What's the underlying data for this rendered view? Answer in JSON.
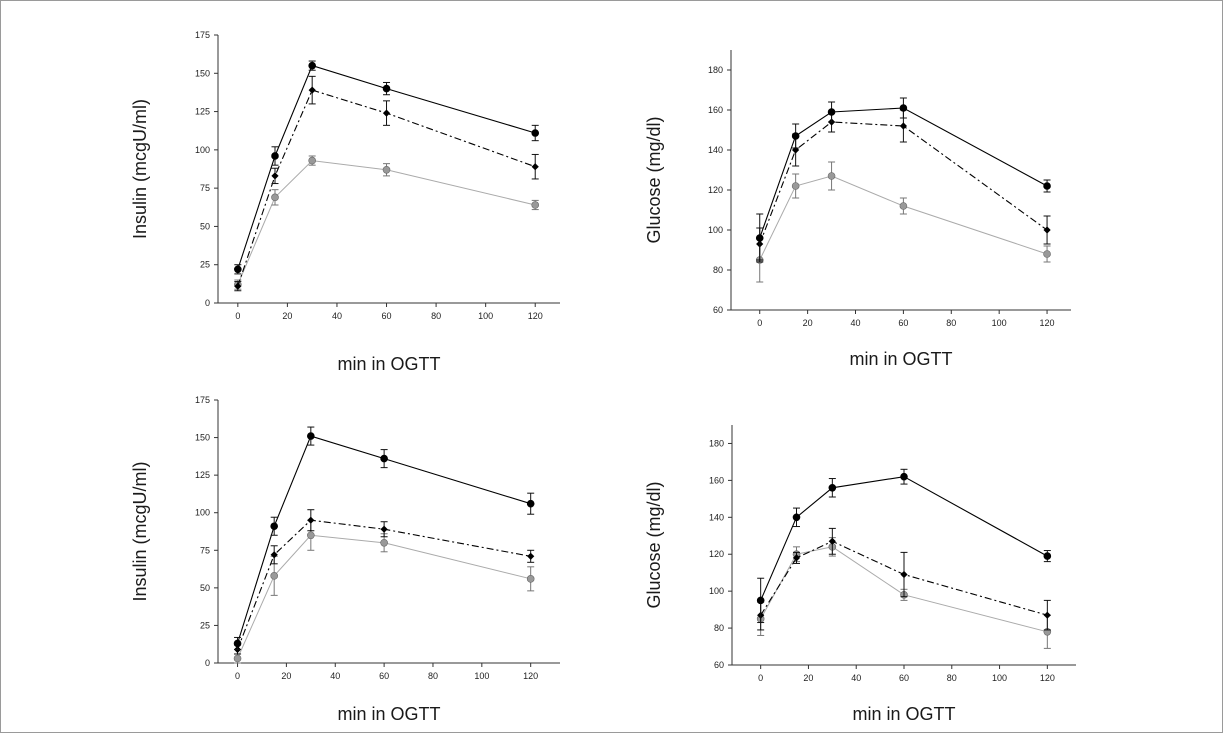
{
  "chart_data": [
    {
      "type": "line",
      "xlabel": "min in OGTT",
      "ylabel": "Insulin (mcgU/ml)",
      "ylim": [
        0,
        175
      ],
      "xlim": [
        -8,
        130
      ],
      "yticks": [
        0,
        25,
        50,
        75,
        100,
        125,
        150,
        175
      ],
      "xticks": [
        0,
        20,
        40,
        60,
        80,
        100,
        120
      ],
      "x": [
        0,
        15,
        30,
        60,
        120
      ],
      "grid": false,
      "series": [
        {
          "style": "solid",
          "color": "#000000",
          "marker_color": "#000000",
          "values": [
            22,
            96,
            155,
            140,
            111
          ],
          "errors": [
            3,
            6,
            3,
            4,
            5
          ]
        },
        {
          "style": "dashed",
          "color": "#000000",
          "marker_color": "#000000",
          "values": [
            11,
            83,
            139,
            124,
            89
          ],
          "errors": [
            3,
            5,
            9,
            8,
            8
          ]
        },
        {
          "style": "gray",
          "color": "#aaaaaa",
          "marker_color": "#999999",
          "values": [
            12,
            69,
            93,
            87,
            64
          ],
          "errors": [
            3,
            5,
            3,
            4,
            3
          ]
        }
      ]
    },
    {
      "type": "line",
      "xlabel": "min in OGTT",
      "ylabel": "Glucose (mg/dl)",
      "ylim": [
        60,
        190
      ],
      "xlim": [
        -12,
        130
      ],
      "yticks": [
        60,
        80,
        100,
        120,
        140,
        160,
        180
      ],
      "xticks": [
        0,
        20,
        40,
        60,
        80,
        100,
        120
      ],
      "x": [
        0,
        15,
        30,
        60,
        120
      ],
      "grid": false,
      "series": [
        {
          "style": "solid",
          "color": "#000000",
          "marker_color": "#000000",
          "values": [
            96,
            147,
            159,
            161,
            122
          ],
          "errors": [
            12,
            6,
            5,
            5,
            3
          ]
        },
        {
          "style": "dashed",
          "color": "#000000",
          "marker_color": "#000000",
          "values": [
            93,
            140,
            154,
            152,
            100
          ],
          "errors": [
            8,
            8,
            5,
            8,
            7
          ]
        },
        {
          "style": "gray",
          "color": "#aaaaaa",
          "marker_color": "#999999",
          "values": [
            85,
            122,
            127,
            112,
            88
          ],
          "errors": [
            11,
            6,
            7,
            4,
            4
          ]
        }
      ]
    },
    {
      "type": "line",
      "xlabel": "min in OGTT",
      "ylabel": "Insulin (mcgU/ml)",
      "ylim": [
        0,
        175
      ],
      "xlim": [
        -8,
        132
      ],
      "yticks": [
        0,
        25,
        50,
        75,
        100,
        125,
        150,
        175
      ],
      "xticks": [
        0,
        20,
        40,
        60,
        80,
        100,
        120
      ],
      "x": [
        0,
        15,
        30,
        60,
        120
      ],
      "grid": false,
      "series": [
        {
          "style": "solid",
          "color": "#000000",
          "marker_color": "#000000",
          "values": [
            13,
            91,
            151,
            136,
            106
          ],
          "errors": [
            4,
            6,
            6,
            6,
            7
          ]
        },
        {
          "style": "dashed",
          "color": "#000000",
          "marker_color": "#000000",
          "values": [
            9,
            72,
            95,
            89,
            71
          ],
          "errors": [
            3,
            6,
            7,
            5,
            4
          ]
        },
        {
          "style": "gray",
          "color": "#aaaaaa",
          "marker_color": "#999999",
          "values": [
            3,
            58,
            85,
            80,
            56
          ],
          "errors": [
            3,
            13,
            10,
            6,
            8
          ]
        }
      ]
    },
    {
      "type": "line",
      "xlabel": "min in OGTT",
      "ylabel": "Glucose (mg/dl)",
      "ylim": [
        60,
        190
      ],
      "xlim": [
        -12,
        132
      ],
      "yticks": [
        60,
        80,
        100,
        120,
        140,
        160,
        180
      ],
      "xticks": [
        0,
        20,
        40,
        60,
        80,
        100,
        120
      ],
      "x": [
        0,
        15,
        30,
        60,
        120
      ],
      "grid": false,
      "series": [
        {
          "style": "solid",
          "color": "#000000",
          "marker_color": "#000000",
          "values": [
            95,
            140,
            156,
            162,
            119
          ],
          "errors": [
            12,
            5,
            5,
            4,
            3
          ]
        },
        {
          "style": "dashed",
          "color": "#000000",
          "marker_color": "#000000",
          "values": [
            87,
            118,
            127,
            109,
            87
          ],
          "errors": [
            8,
            3,
            7,
            12,
            8
          ]
        },
        {
          "style": "gray",
          "color": "#aaaaaa",
          "marker_color": "#999999",
          "values": [
            85,
            120,
            124,
            98,
            78
          ],
          "errors": [
            9,
            4,
            5,
            3,
            9
          ]
        }
      ]
    }
  ]
}
